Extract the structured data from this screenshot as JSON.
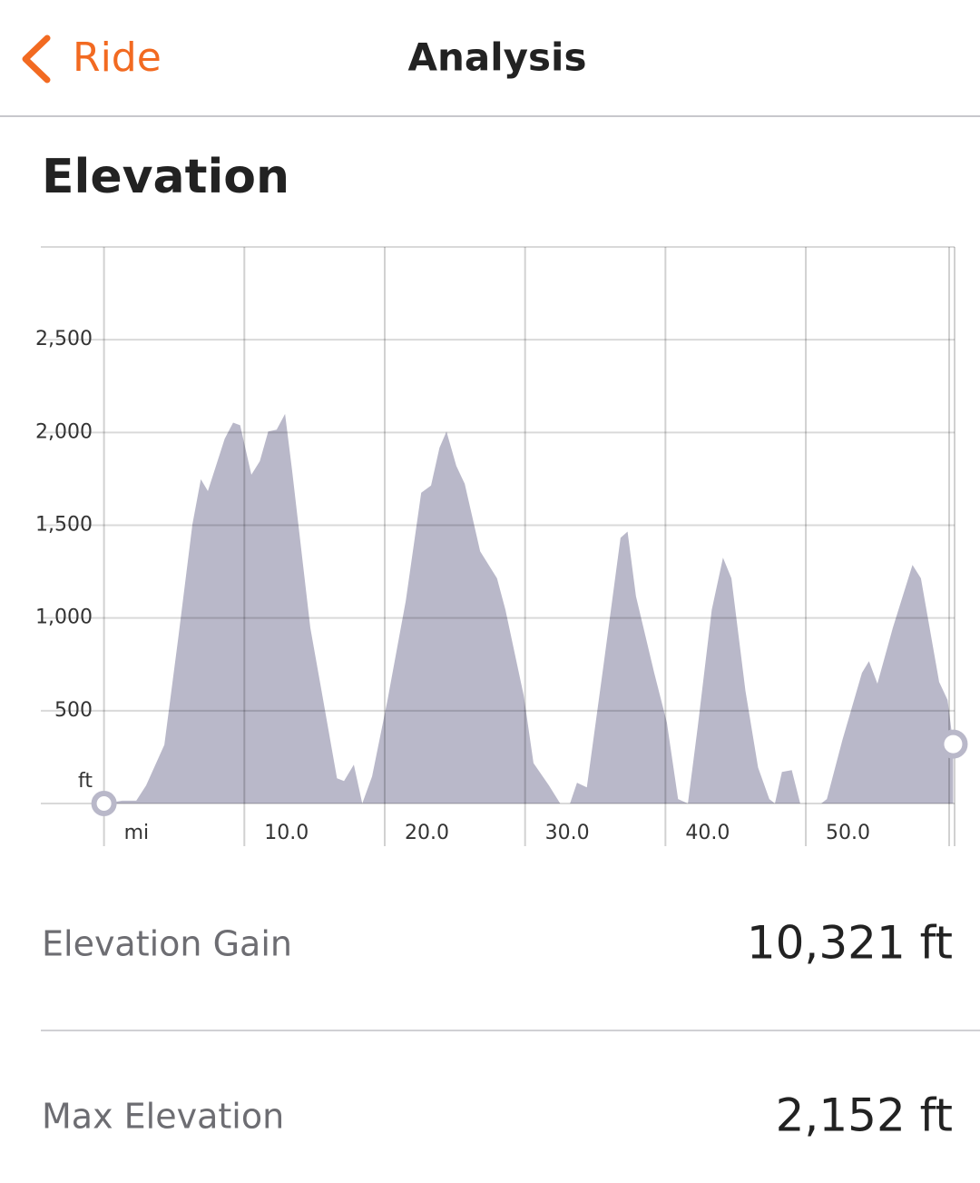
{
  "header": {
    "back": "Ride",
    "title": "Analysis"
  },
  "section_title": "Elevation",
  "stats": [
    {
      "label": "Elevation Gain",
      "value": "10,321 ft"
    },
    {
      "label": "Max Elevation",
      "value": "2,152 ft"
    }
  ],
  "chart_data": {
    "type": "area",
    "color": "#b9b8c9",
    "x": [
      0,
      1.3,
      2.3,
      3.0,
      4.3,
      5.3,
      6.3,
      6.9,
      7.4,
      8.6,
      9.2,
      9.7,
      10.5,
      11.1,
      11.7,
      12.3,
      12.9,
      13.4,
      14.7,
      15.5,
      16.6,
      17.1,
      17.8,
      18.4,
      19.1,
      20.2,
      21.5,
      22.6,
      23.3,
      23.9,
      24.4,
      25.1,
      25.7,
      26.8,
      28.0,
      28.6,
      29.9,
      30.6,
      31.7,
      32.5,
      33.2,
      33.7,
      34.4,
      35.6,
      36.8,
      37.3,
      37.9,
      39.2,
      40.1,
      40.9,
      41.6,
      42.3,
      43.3,
      44.1,
      44.7,
      45.7,
      46.6,
      47.4,
      47.8,
      48.3,
      49.0,
      49.6,
      51.1,
      51.5,
      52.6,
      54.0,
      54.5,
      55.1,
      56.2,
      57.6,
      58.2,
      59.5,
      60.1,
      60.5
    ],
    "values": [
      0,
      15,
      15,
      97,
      316,
      898,
      1505,
      1748,
      1684,
      1966,
      2053,
      2039,
      1772,
      1845,
      2005,
      2015,
      2100,
      1796,
      947,
      607,
      136,
      121,
      209,
      0,
      146,
      558,
      1092,
      1675,
      1714,
      1917,
      2005,
      1820,
      1723,
      1359,
      1214,
      1044,
      583,
      218,
      97,
      0,
      0,
      112,
      87,
      752,
      1432,
      1466,
      1117,
      704,
      437,
      24,
      0,
      413,
      1044,
      1325,
      1214,
      607,
      194,
      24,
      0,
      170,
      180,
      0,
      0,
      24,
      340,
      704,
      767,
      646,
      947,
      1286,
      1214,
      655,
      558,
      320
    ],
    "xlim": [
      -4.5,
      60.6
    ],
    "xticks": [
      {
        "value": 0,
        "label": "mi"
      },
      {
        "value": 10,
        "label": "10.0"
      },
      {
        "value": 20,
        "label": "20.0"
      },
      {
        "value": 30,
        "label": "30.0"
      },
      {
        "value": 40,
        "label": "40.0"
      },
      {
        "value": 50,
        "label": "50.0"
      }
    ],
    "ylim": [
      0,
      3000
    ],
    "yticks": [
      {
        "value": 0,
        "label": "ft"
      },
      500,
      {
        "value": 1000,
        "label": "1,000"
      },
      {
        "value": 1500,
        "label": "1,500"
      },
      {
        "value": 2000,
        "label": "2,000"
      },
      {
        "value": 2500,
        "label": "2,500"
      }
    ],
    "grid": true
  }
}
